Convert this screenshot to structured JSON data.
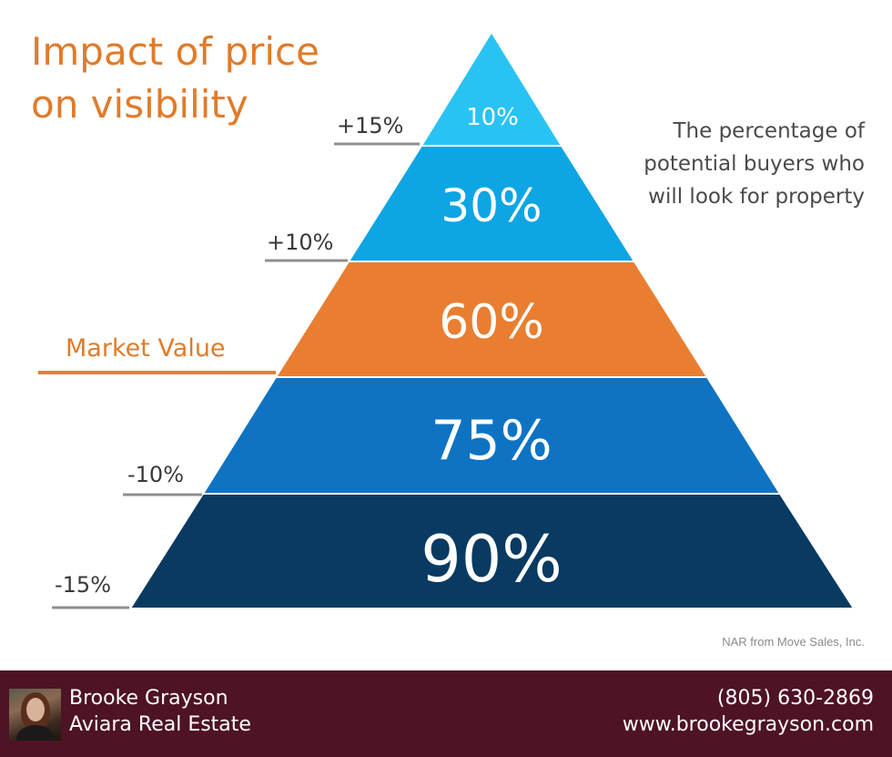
{
  "title": {
    "line1": "Impact of price",
    "line2": "on visibility"
  },
  "description": {
    "line1": "The percentage of",
    "line2": "potential buyers who",
    "line3": "will look for property"
  },
  "tiers": [
    {
      "value": "10%",
      "color": "#29c3f3"
    },
    {
      "value": "30%",
      "color": "#0ea5e4"
    },
    {
      "value": "60%",
      "color": "#e97e30"
    },
    {
      "value": "75%",
      "color": "#0e73c3"
    },
    {
      "value": "90%",
      "color": "#083a62"
    }
  ],
  "price_labels": {
    "plus15": "+15%",
    "plus10": "+10%",
    "market": "Market Value",
    "minus10": "-10%",
    "minus15": "-15%"
  },
  "source": "NAR from Move Sales, Inc.",
  "footer": {
    "name": "Brooke Grayson",
    "company": "Aviara Real Estate",
    "phone": "(805) 630-2869",
    "website": "www.brookegrayson.com"
  }
}
